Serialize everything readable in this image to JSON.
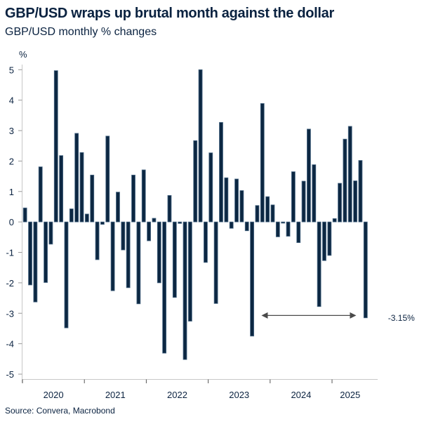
{
  "header": {
    "title": "GBP/USD wraps up brutal month against the dollar",
    "subtitle": "GBP/USD monthly % changes"
  },
  "footer": {
    "source": "Source: Convera, Macrobond"
  },
  "colors": {
    "bar_fill": "#0c2742",
    "bar_stroke": "#4d6c88",
    "text": "#0a2240",
    "axis": "#c8c8c8",
    "arrow": "#4a4a4a"
  },
  "chart_data": {
    "type": "bar",
    "title": "GBP/USD wraps up brutal month against the dollar",
    "subtitle": "GBP/USD monthly % changes",
    "xlabel": "",
    "ylabel": "%",
    "ylim": [
      -5,
      5
    ],
    "yticks": [
      5,
      4,
      3,
      2,
      1,
      0,
      -1,
      -2,
      -3,
      -4,
      -5
    ],
    "xticks": [
      "2020",
      "2021",
      "2022",
      "2023",
      "2024",
      "2025"
    ],
    "x_start": "2020-01",
    "grid": false,
    "legend": "none",
    "categories": [
      "2020-01",
      "2020-02",
      "2020-03",
      "2020-04",
      "2020-05",
      "2020-06",
      "2020-07",
      "2020-08",
      "2020-09",
      "2020-10",
      "2020-11",
      "2020-12",
      "2021-01",
      "2021-02",
      "2021-03",
      "2021-04",
      "2021-05",
      "2021-06",
      "2021-07",
      "2021-08",
      "2021-09",
      "2021-10",
      "2021-11",
      "2021-12",
      "2022-01",
      "2022-02",
      "2022-03",
      "2022-04",
      "2022-05",
      "2022-06",
      "2022-07",
      "2022-08",
      "2022-09",
      "2022-10",
      "2022-11",
      "2022-12",
      "2023-01",
      "2023-02",
      "2023-03",
      "2023-04",
      "2023-05",
      "2023-06",
      "2023-07",
      "2023-08",
      "2023-09",
      "2023-10",
      "2023-11",
      "2023-12",
      "2024-01",
      "2024-02",
      "2024-03",
      "2024-04",
      "2024-05",
      "2024-06",
      "2024-07",
      "2024-08",
      "2024-09",
      "2024-10",
      "2024-11",
      "2024-12",
      "2025-01",
      "2025-02",
      "2025-03",
      "2025-04",
      "2025-05",
      "2025-06",
      "2025-07"
    ],
    "values": [
      0.46,
      -2.07,
      -2.63,
      1.81,
      -1.99,
      -0.73,
      4.97,
      2.18,
      -3.48,
      0.43,
      2.91,
      2.28,
      0.26,
      1.54,
      -1.24,
      -0.08,
      2.82,
      -2.26,
      0.98,
      -0.92,
      -2.16,
      1.54,
      -2.69,
      1.71,
      -0.62,
      0.12,
      -2.0,
      -4.31,
      0.87,
      -2.48,
      -0.05,
      -4.52,
      -3.26,
      2.67,
      5.0,
      -1.33,
      2.27,
      -2.68,
      3.27,
      1.45,
      -0.21,
      1.41,
      1.03,
      -0.29,
      -3.75,
      0.54,
      3.89,
      0.83,
      0.56,
      -0.49,
      -0.04,
      -0.47,
      1.65,
      -0.68,
      1.34,
      3.05,
      1.88,
      -2.78,
      -1.27,
      -1.1,
      0.11,
      1.27,
      2.72,
      3.14,
      1.35,
      2.02,
      -3.15
    ],
    "annotations": [
      {
        "type": "double-arrow",
        "from": "2023-10",
        "to": "2025-06",
        "y": -3.06
      },
      {
        "type": "label",
        "text": "-3.15%",
        "at": "2025-07",
        "y": -3.15
      }
    ]
  }
}
